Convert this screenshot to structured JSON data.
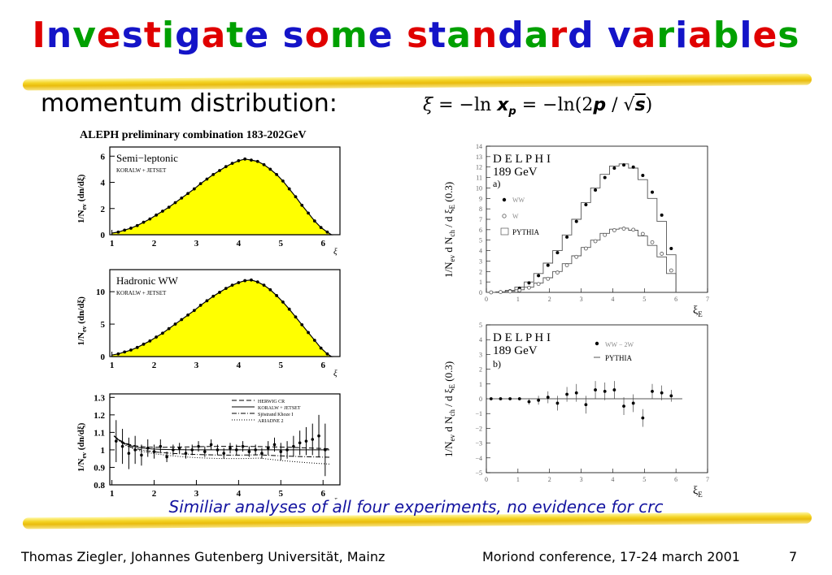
{
  "slide": {
    "title_letters": [
      {
        "ch": "I",
        "c": "#e00000"
      },
      {
        "ch": "n",
        "c": "#1414c8"
      },
      {
        "ch": "v",
        "c": "#00a000"
      },
      {
        "ch": "e",
        "c": "#e00000"
      },
      {
        "ch": "s",
        "c": "#1414c8"
      },
      {
        "ch": "t",
        "c": "#e00000"
      },
      {
        "ch": "i",
        "c": "#00a000"
      },
      {
        "ch": "g",
        "c": "#1414c8"
      },
      {
        "ch": "a",
        "c": "#e00000"
      },
      {
        "ch": "t",
        "c": "#00a000"
      },
      {
        "ch": "e",
        "c": "#1414c8"
      },
      {
        "ch": " ",
        "c": "#000000"
      },
      {
        "ch": "s",
        "c": "#1414c8"
      },
      {
        "ch": "o",
        "c": "#e00000"
      },
      {
        "ch": "m",
        "c": "#00a000"
      },
      {
        "ch": "e",
        "c": "#1414c8"
      },
      {
        "ch": " ",
        "c": "#000000"
      },
      {
        "ch": "s",
        "c": "#e00000"
      },
      {
        "ch": "t",
        "c": "#1414c8"
      },
      {
        "ch": "a",
        "c": "#00a000"
      },
      {
        "ch": "n",
        "c": "#e00000"
      },
      {
        "ch": "d",
        "c": "#1414c8"
      },
      {
        "ch": "a",
        "c": "#00a000"
      },
      {
        "ch": "r",
        "c": "#e00000"
      },
      {
        "ch": "d",
        "c": "#1414c8"
      },
      {
        "ch": " ",
        "c": "#000000"
      },
      {
        "ch": "v",
        "c": "#1414c8"
      },
      {
        "ch": "a",
        "c": "#e00000"
      },
      {
        "ch": "r",
        "c": "#00a000"
      },
      {
        "ch": "i",
        "c": "#1414c8"
      },
      {
        "ch": "a",
        "c": "#e00000"
      },
      {
        "ch": "b",
        "c": "#00a000"
      },
      {
        "ch": "l",
        "c": "#1414c8"
      },
      {
        "ch": "e",
        "c": "#e00000"
      },
      {
        "ch": "s",
        "c": "#00a000"
      }
    ],
    "subtitle": "momentum distribution:",
    "formula": {
      "xi": "ξ",
      "eq1": "= −ln",
      "x": "x",
      "sub_p": "p",
      "eq2": "= −ln(2",
      "p": "p",
      "slash": " / ",
      "sqrt": "√",
      "s": "s",
      "close": ")"
    },
    "caption": "Similiar analyses of all four experiments, no evidence for crc",
    "footer_left": "Thomas Ziegler, Johannes Gutenberg Universität, Mainz",
    "footer_mid": "Moriond conference, 17-24 march 2001",
    "footer_page": "7",
    "highlight_color": "#f3d21a"
  },
  "aleph": {
    "header": "ALEPH preliminary combination 183-202GeV",
    "ylabel": "1/N",
    "ylabel_sub": "ev",
    "ylabel_rest": " (dn/dξ)",
    "xlabel": "ξ",
    "x_ticks": [
      "1",
      "2",
      "3",
      "4",
      "5",
      "6"
    ],
    "fill_color": "#ffff00",
    "panels": [
      {
        "label": "Semi−leptonic",
        "sub": "KORALW + JETSET",
        "y_ticks": [
          "0",
          "2",
          "4",
          "6"
        ],
        "ymax": 6.7,
        "x": [
          1.15,
          1.3,
          1.45,
          1.6,
          1.75,
          1.9,
          2.05,
          2.2,
          2.35,
          2.5,
          2.65,
          2.8,
          2.95,
          3.1,
          3.25,
          3.4,
          3.55,
          3.7,
          3.85,
          4.0,
          4.15,
          4.3,
          4.45,
          4.6,
          4.75,
          4.9,
          5.05,
          5.2,
          5.35,
          5.5,
          5.65,
          5.8,
          5.95,
          6.1
        ],
        "y": [
          0.2,
          0.35,
          0.5,
          0.7,
          0.95,
          1.2,
          1.5,
          1.8,
          2.1,
          2.45,
          2.8,
          3.15,
          3.5,
          3.9,
          4.25,
          4.6,
          4.9,
          5.2,
          5.45,
          5.65,
          5.78,
          5.7,
          5.6,
          5.35,
          5.0,
          4.6,
          4.1,
          3.5,
          2.9,
          2.25,
          1.65,
          1.05,
          0.55,
          0.2
        ]
      },
      {
        "label": "Hadronic WW",
        "sub": "KORALW + JETSET",
        "y_ticks": [
          "0",
          "5",
          "10"
        ],
        "ymax": 13.4,
        "x": [
          1.15,
          1.3,
          1.45,
          1.6,
          1.75,
          1.9,
          2.05,
          2.2,
          2.35,
          2.5,
          2.65,
          2.8,
          2.95,
          3.1,
          3.25,
          3.4,
          3.55,
          3.7,
          3.85,
          4.0,
          4.15,
          4.3,
          4.45,
          4.6,
          4.75,
          4.9,
          5.05,
          5.2,
          5.35,
          5.5,
          5.65,
          5.8,
          5.95,
          6.1
        ],
        "y": [
          0.4,
          0.7,
          1.0,
          1.4,
          1.9,
          2.4,
          3.0,
          3.6,
          4.3,
          5.0,
          5.7,
          6.4,
          7.1,
          7.9,
          8.6,
          9.3,
          9.9,
          10.5,
          11.0,
          11.4,
          11.7,
          11.8,
          11.5,
          11.0,
          10.3,
          9.4,
          8.4,
          7.3,
          6.1,
          4.9,
          3.7,
          2.5,
          1.3,
          0.4
        ]
      }
    ],
    "ratio": {
      "y_ticks": [
        "0.8",
        "0.9",
        "1",
        "1.1",
        "1.2",
        "1.3"
      ],
      "legend": [
        "HERWIG CR",
        "KORALW + JETSET",
        "Sjöstrand Khoze I",
        "ARIADNE 2"
      ],
      "x": [
        1.1,
        1.25,
        1.4,
        1.55,
        1.7,
        1.85,
        2.0,
        2.15,
        2.3,
        2.45,
        2.6,
        2.75,
        2.9,
        3.05,
        3.2,
        3.35,
        3.5,
        3.65,
        3.8,
        3.95,
        4.1,
        4.25,
        4.4,
        4.55,
        4.7,
        4.85,
        5.0,
        5.15,
        5.3,
        5.45,
        5.6,
        5.75,
        5.9,
        6.05
      ],
      "y": [
        1.05,
        1.02,
        0.98,
        1.0,
        0.97,
        1.01,
        0.99,
        1.02,
        0.96,
        1.0,
        1.01,
        0.98,
        1.0,
        1.02,
        0.99,
        1.03,
        1.0,
        0.98,
        1.01,
        1.0,
        1.02,
        0.99,
        1.0,
        0.98,
        1.01,
        1.03,
        0.99,
        1.0,
        1.02,
        1.04,
        1.05,
        1.06,
        1.08,
        1.0
      ],
      "err": [
        0.12,
        0.1,
        0.09,
        0.08,
        0.06,
        0.05,
        0.04,
        0.04,
        0.03,
        0.03,
        0.03,
        0.03,
        0.03,
        0.03,
        0.03,
        0.03,
        0.03,
        0.03,
        0.03,
        0.03,
        0.03,
        0.03,
        0.03,
        0.03,
        0.04,
        0.04,
        0.05,
        0.05,
        0.06,
        0.07,
        0.08,
        0.09,
        0.12,
        0.15
      ]
    }
  },
  "delphi": {
    "name": "D E L P H I",
    "energy": "189   GeV",
    "ylabel": "1/N",
    "ylabel_sub1": "ev",
    "ylabel_mid": " d N",
    "ylabel_sub2": "ch",
    "ylabel_rest": " / d ξ",
    "ylabel_sub3": "E",
    "ylabel_end": " (0.3)",
    "xlabel": "ξ",
    "xlabel_sub": "E",
    "x_ticks": [
      "0",
      "1",
      "2",
      "3",
      "4",
      "5",
      "6",
      "7"
    ],
    "panel_a": {
      "tag": "a)",
      "legend": [
        "WW",
        "W",
        "PYTHIA"
      ],
      "y_ticks": [
        "0",
        "1",
        "2",
        "3",
        "4",
        "5",
        "6",
        "7",
        "8",
        "9",
        "10",
        "11",
        "12",
        "13",
        "14"
      ],
      "ymax": 14,
      "ww_x": [
        0.15,
        0.45,
        0.75,
        1.05,
        1.35,
        1.65,
        1.95,
        2.25,
        2.55,
        2.85,
        3.15,
        3.45,
        3.75,
        4.05,
        4.35,
        4.65,
        4.95,
        5.25,
        5.55,
        5.85
      ],
      "ww_y": [
        0.0,
        0.05,
        0.15,
        0.4,
        0.9,
        1.6,
        2.6,
        3.8,
        5.3,
        6.8,
        8.4,
        9.8,
        11.0,
        11.9,
        12.2,
        12.0,
        11.2,
        9.6,
        7.4,
        4.2
      ],
      "w_y": [
        0.0,
        0.03,
        0.08,
        0.2,
        0.45,
        0.8,
        1.3,
        1.9,
        2.6,
        3.4,
        4.2,
        4.9,
        5.5,
        5.95,
        6.1,
        6.0,
        5.6,
        4.8,
        3.7,
        2.1
      ],
      "pythia_ww": [
        0.0,
        0.05,
        0.2,
        0.5,
        1.0,
        1.8,
        2.8,
        4.0,
        5.5,
        7.0,
        8.6,
        10.0,
        11.3,
        12.1,
        12.3,
        11.9,
        10.8,
        9.0,
        6.8,
        3.6
      ],
      "pythia_w": [
        0.0,
        0.03,
        0.1,
        0.25,
        0.5,
        0.9,
        1.4,
        2.0,
        2.75,
        3.5,
        4.3,
        5.0,
        5.65,
        6.05,
        6.15,
        5.95,
        5.4,
        4.5,
        3.4,
        1.8
      ]
    },
    "panel_b": {
      "tag": "b)",
      "legend": [
        "WW − 2W",
        "PYTHIA"
      ],
      "y_ticks": [
        "−5",
        "−4",
        "−3",
        "−2",
        "−1",
        "0",
        "1",
        "2",
        "3",
        "4",
        "5"
      ],
      "x": [
        0.15,
        0.45,
        0.75,
        1.05,
        1.35,
        1.65,
        1.95,
        2.25,
        2.55,
        2.85,
        3.15,
        3.45,
        3.75,
        4.05,
        4.35,
        4.65,
        4.95,
        5.25,
        5.55,
        5.85
      ],
      "y": [
        0.0,
        0.0,
        0.0,
        0.0,
        -0.2,
        -0.1,
        0.1,
        -0.3,
        0.3,
        0.4,
        -0.4,
        0.6,
        0.5,
        0.6,
        -0.5,
        -0.3,
        -1.3,
        0.5,
        0.4,
        0.2
      ],
      "err": [
        0.05,
        0.05,
        0.05,
        0.1,
        0.2,
        0.3,
        0.4,
        0.5,
        0.5,
        0.6,
        0.6,
        0.6,
        0.6,
        0.6,
        0.6,
        0.6,
        0.6,
        0.5,
        0.5,
        0.4
      ]
    }
  }
}
